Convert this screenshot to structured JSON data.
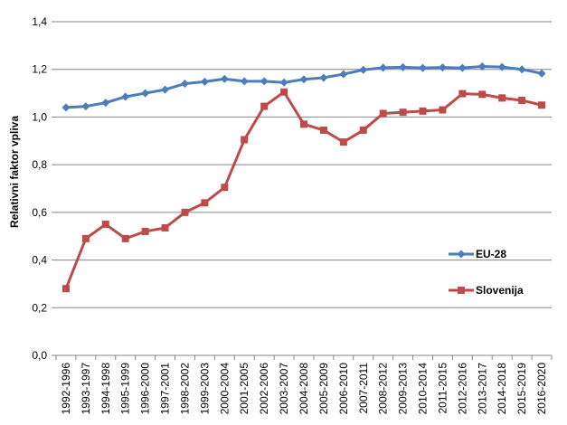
{
  "chart_data": {
    "type": "line",
    "ylabel": "Relativni faktor vpliva",
    "ylim": [
      0,
      1.4
    ],
    "yticks": [
      "0,0",
      "0,2",
      "0,4",
      "0,6",
      "0,8",
      "1,0",
      "1,2",
      "1,4"
    ],
    "grid": true,
    "legend_position": "right",
    "categories": [
      "1992-1996",
      "1993-1997",
      "1994-1998",
      "1995-1999",
      "1996-2000",
      "1997-2001",
      "1998-2002",
      "1999-2003",
      "2000-2004",
      "2001-2005",
      "2002-2006",
      "2003-2007",
      "2004-2008",
      "2005-2009",
      "2006-2010",
      "2007-2011",
      "2008-2012",
      "2009-2013",
      "2010-2014",
      "2011-2015",
      "2012-2016",
      "2013-2017",
      "2014-2018",
      "2015-2019",
      "2016-2020"
    ],
    "series": [
      {
        "name": "EU-28",
        "color": "#4a7ebb",
        "marker": "diamond",
        "values": [
          1.04,
          1.045,
          1.06,
          1.085,
          1.1,
          1.115,
          1.14,
          1.148,
          1.16,
          1.15,
          1.15,
          1.145,
          1.158,
          1.165,
          1.18,
          1.198,
          1.207,
          1.209,
          1.206,
          1.208,
          1.206,
          1.212,
          1.21,
          1.2,
          1.183
        ]
      },
      {
        "name": "Slovenija",
        "color": "#be4b48",
        "marker": "square",
        "values": [
          0.28,
          0.49,
          0.55,
          0.49,
          0.52,
          0.535,
          0.6,
          0.64,
          0.705,
          0.905,
          1.045,
          1.105,
          0.97,
          0.945,
          0.895,
          0.945,
          1.015,
          1.02,
          1.025,
          1.03,
          1.098,
          1.095,
          1.08,
          1.07,
          1.05
        ]
      }
    ]
  }
}
